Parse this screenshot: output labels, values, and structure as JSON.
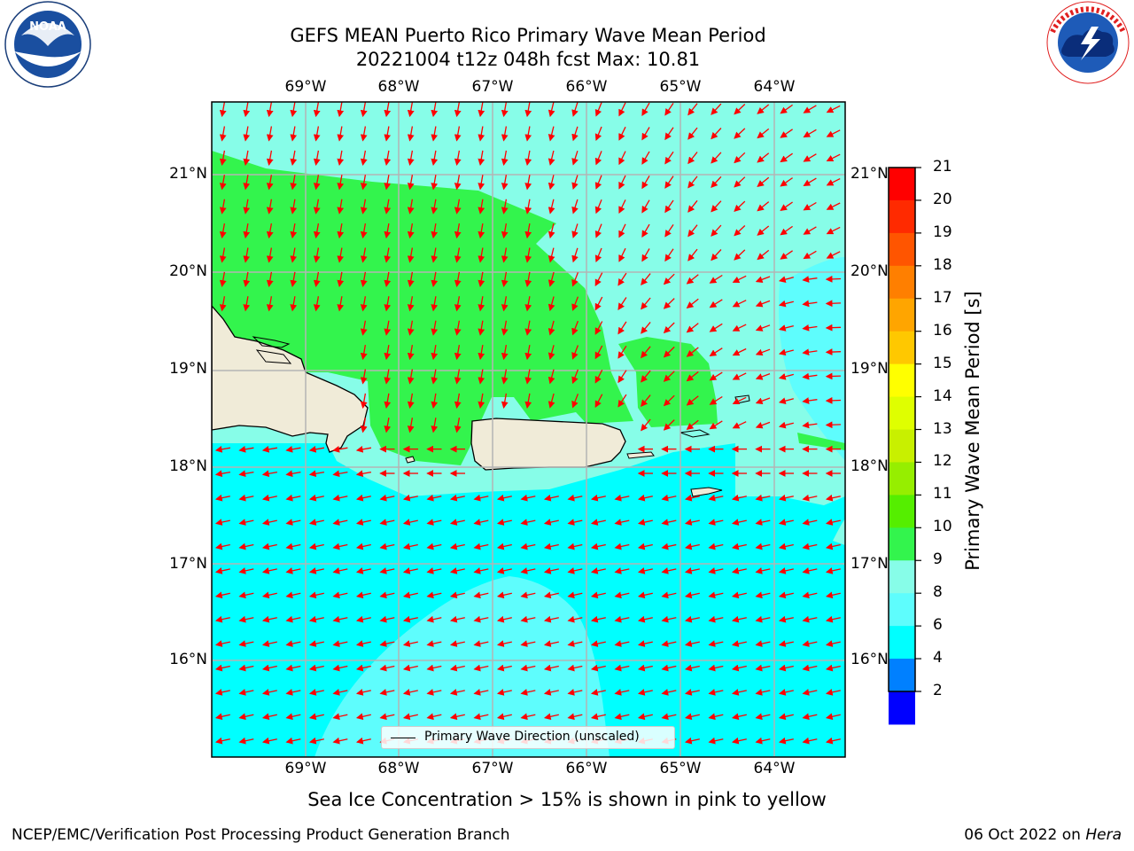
{
  "title": {
    "line1": "GEFS MEAN Puerto Rico Primary Wave Mean Period",
    "line2": "20221004 t12z 048h fcst   Max: 10.81"
  },
  "logos": {
    "noara_text": "NOAA",
    "noaa_ring": "NATIONAL OCEANIC AND ATMOSPHERIC ADMINISTRATION · U.S. DEPARTMENT OF COMMERCE",
    "nws_ring": "NATIONAL WEATHER SERVICE"
  },
  "map": {
    "lon_labels": [
      "69°W",
      "68°W",
      "67°W",
      "66°W",
      "65°W",
      "64°W"
    ],
    "lat_labels": [
      "21°N",
      "20°N",
      "19°N",
      "18°N",
      "17°N",
      "16°N"
    ],
    "lon_range": [
      -70.0,
      -63.25
    ],
    "lat_range": [
      15.0,
      21.75
    ],
    "wave_direction_note": "arrows point southward north of island, westward south of island",
    "colors": {
      "band_6_8": "#00ffff",
      "band_8_9": "#5efdfd",
      "band_9_10": "#87fde8",
      "band_10_11": "#33f44d",
      "land": "#f0ebd8",
      "arrow": "#ff0000",
      "grid": "#b4b4b4"
    }
  },
  "colorbar": {
    "ticks": [
      "21",
      "20",
      "19",
      "18",
      "17",
      "16",
      "15",
      "14",
      "13",
      "12",
      "11",
      "10",
      "9",
      "8",
      "6",
      "4",
      "2"
    ],
    "colors_top_to_bottom": [
      "#ff0000",
      "#ff2a00",
      "#ff5500",
      "#ff7f00",
      "#ffa500",
      "#ffc800",
      "#ffff00",
      "#dfff00",
      "#c8f000",
      "#96ee00",
      "#55ee00",
      "#33f44d",
      "#87fde8",
      "#5efdfd",
      "#00ffff",
      "#0080ff",
      "#0000ff"
    ],
    "label": "Primary Wave Mean Period [s]"
  },
  "legend": {
    "label": "Primary Wave Direction (unscaled)"
  },
  "notes": {
    "ice": "Sea Ice Concentration > 15% is shown in pink to yellow"
  },
  "footer": {
    "left": "NCEP/EMC/Verification Post Processing Product Generation Branch",
    "right_date": "06 Oct 2022 on ",
    "right_machine": "Hera"
  }
}
